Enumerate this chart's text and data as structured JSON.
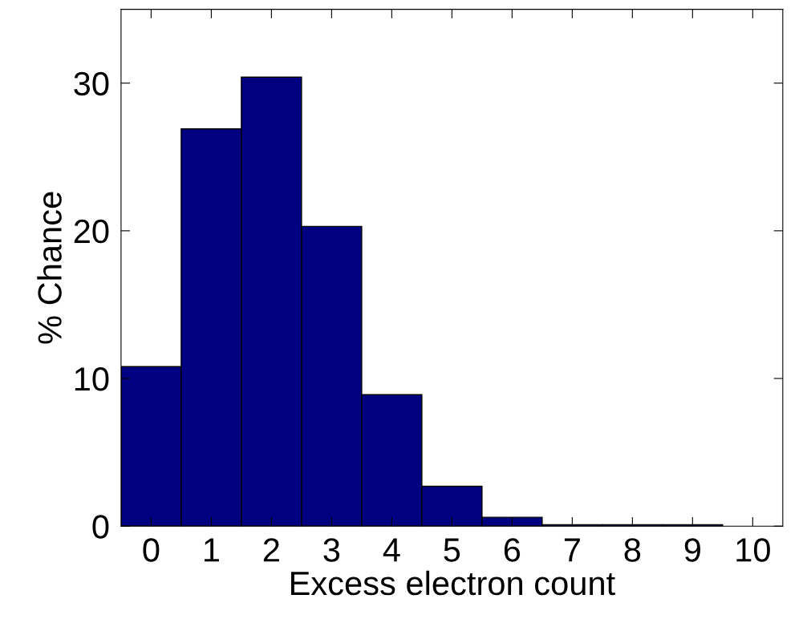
{
  "chart_data": {
    "type": "histogram",
    "xlabel": "Excess electron count",
    "ylabel": "% Chance",
    "bins": [
      -0.5,
      0.5,
      1.5,
      2.5,
      3.5,
      4.5,
      5.5,
      6.5,
      7.5,
      8.5,
      9.5
    ],
    "values": [
      10.8,
      26.9,
      30.4,
      20.3,
      8.9,
      2.7,
      0.6,
      0.1,
      0.1,
      0.1
    ],
    "color": "#000080",
    "xlim": [
      -0.5,
      10.5
    ],
    "xticks": [
      0,
      1,
      2,
      3,
      4,
      5,
      6,
      7,
      8,
      9,
      10
    ],
    "ylim": [
      0,
      35
    ],
    "yticks": [
      0,
      10,
      20,
      30
    ],
    "grid": false
  }
}
